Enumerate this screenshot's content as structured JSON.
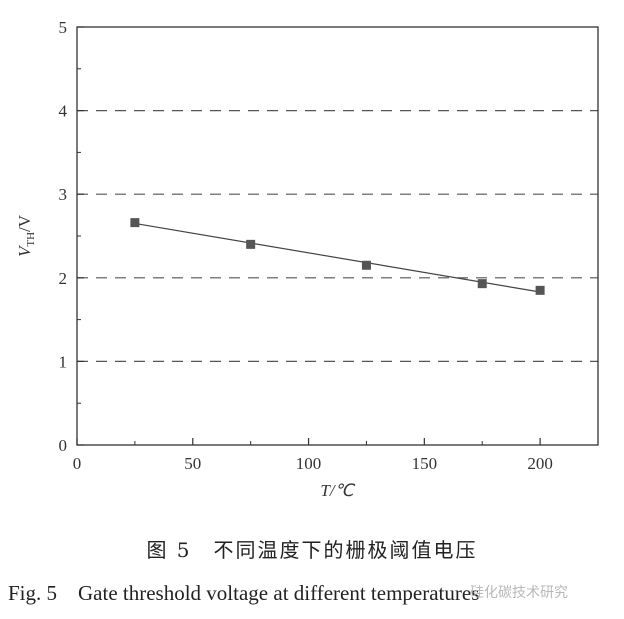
{
  "chart_data": {
    "type": "scatter",
    "x": [
      25,
      75,
      125,
      175,
      200
    ],
    "y": [
      2.66,
      2.4,
      2.15,
      1.93,
      1.85
    ],
    "trend_line": {
      "x": [
        25,
        200
      ],
      "y": [
        2.65,
        1.83
      ]
    },
    "xlim": [
      0,
      225
    ],
    "ylim": [
      0,
      5
    ],
    "x_ticks": [
      0,
      50,
      100,
      150,
      200
    ],
    "y_ticks": [
      0,
      1,
      2,
      3,
      4,
      5
    ],
    "x_tick_labels": [
      "0",
      "50",
      "100",
      "150",
      "200"
    ],
    "y_tick_labels": [
      "0",
      "1",
      "2",
      "3",
      "4",
      "5"
    ],
    "xlabel": "T/℃",
    "ylabel_main": "V",
    "ylabel_sub": "TH",
    "ylabel_unit": "/V",
    "grid": "horizontal dashed",
    "marker": "square",
    "marker_color": "#555555",
    "line_color": "#444444",
    "grid_color": "#555555"
  },
  "caption": {
    "chinese": "图 5　不同温度下的栅极阈值电压",
    "english": "Fig. 5　Gate threshold voltage at different temperatures"
  },
  "watermark": "硅化碳技术研究"
}
